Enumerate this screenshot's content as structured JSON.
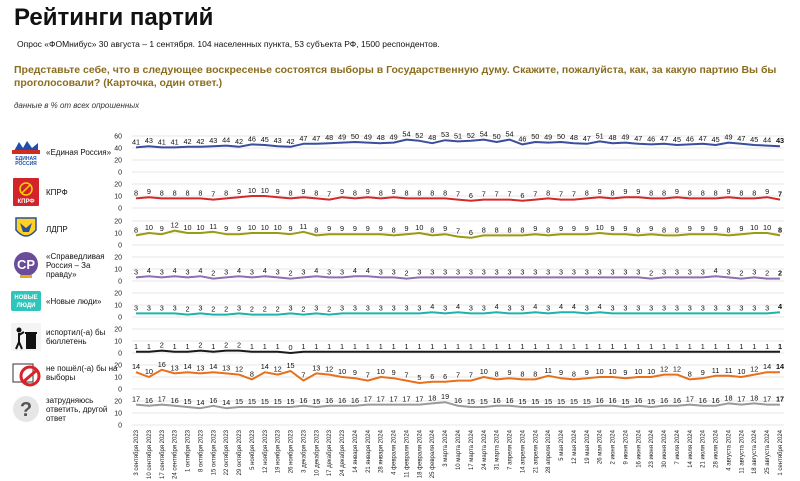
{
  "header": {
    "title": "Рейтинги партий",
    "survey": "Опрос «ФОМнибус» 30 августа – 1 сентября. 104 населенных пункта, 53 субъекта РФ, 1500 респондентов.",
    "question": "Представьте себе, что в следующее воскресенье состоятся выборы в Государственную думу. Скажите, пожалуйста, как, за какую партию Вы бы проголосовали? (Карточка, один ответ.)",
    "note": "данные в % от всех опрошенных"
  },
  "parties": [
    {
      "label": "«Единая Россия»",
      "logo_icon": "united-russia-bear-icon",
      "logo_text": "ЕДИНАЯ РОССИЯ"
    },
    {
      "label": "КПРФ",
      "logo_icon": "kprf-hammer-sickle-icon",
      "logo_text": "КПРФ"
    },
    {
      "label": "ЛДПР",
      "logo_icon": "ldpr-eagle-icon",
      "logo_text": ""
    },
    {
      "label": "«Справедливая Россия – За правду»",
      "logo_icon": "sr-logo-icon",
      "logo_text": "СР"
    },
    {
      "label": "«Новые люди»",
      "logo_icon": "new-people-logo-icon",
      "logo_text": "НОВЫЕ ЛЮДИ"
    },
    {
      "label": "испортил(-а) бы бюллетень",
      "logo_icon": "trash-bin-icon",
      "logo_text": ""
    },
    {
      "label": "не пошёл(-а) бы на выборы",
      "logo_icon": "no-vote-icon",
      "logo_text": ""
    },
    {
      "label": "затрудняюсь ответить, другой ответ",
      "logo_icon": "question-mark-icon",
      "logo_text": "?"
    }
  ],
  "chart_data": {
    "type": "line",
    "title": "Рейтинги партий",
    "ylim_top": [
      0,
      60
    ],
    "yticks_top": [
      0,
      20,
      40,
      60
    ],
    "ylim": [
      0,
      20
    ],
    "yticks": [
      0,
      10,
      20
    ],
    "x": [
      "3 сентября 2023",
      "10 сентября 2023",
      "17 сентября 2023",
      "24 сентября 2023",
      "1 октября 2023",
      "8 октября 2023",
      "15 октября 2023",
      "22 октября 2023",
      "29 октября 2023",
      "5 ноября 2023",
      "12 ноября 2023",
      "19 ноября 2023",
      "26 ноября 2023",
      "3 декабря 2023",
      "10 декабря 2023",
      "17 декабря 2023",
      "24 декабря 2023",
      "14 января 2024",
      "21 января 2024",
      "28 января 2024",
      "4 февраля 2024",
      "11 февраля 2024",
      "18 февраля 2024",
      "25 февраля 2024",
      "3 марта 2024",
      "10 марта 2024",
      "17 марта 2024",
      "24 марта 2024",
      "31 марта 2024",
      "7 апреля 2024",
      "14 апреля 2024",
      "21 апреля 2024",
      "28 апреля 2024",
      "5 мая 2024",
      "12 мая 2024",
      "19 мая 2024",
      "26 мая 2024",
      "2 июня 2024",
      "9 июня 2024",
      "16 июня 2024",
      "23 июня 2024",
      "30 июня 2024",
      "7 июля 2024",
      "14 июля 2024",
      "21 июля 2024",
      "28 июля 2024",
      "4 августа 2024",
      "11 августа 2024",
      "18 августа 2024",
      "25 августа 2024",
      "1 сентября 2024"
    ],
    "series": [
      {
        "name": "«Единая Россия»",
        "color": "#3a4ea0",
        "values": [
          41,
          43,
          41,
          41,
          42,
          42,
          43,
          44,
          42,
          46,
          45,
          43,
          42,
          47,
          47,
          48,
          49,
          50,
          49,
          48,
          49,
          54,
          52,
          48,
          53,
          51,
          52,
          54,
          50,
          54,
          46,
          50,
          49,
          50,
          48,
          47,
          51,
          48,
          49,
          47,
          46,
          47,
          45,
          46,
          47,
          45,
          49,
          47,
          45,
          44,
          43
        ]
      },
      {
        "name": "КПРФ",
        "color": "#d62828",
        "values": [
          8,
          9,
          8,
          8,
          8,
          8,
          7,
          8,
          9,
          10,
          10,
          9,
          8,
          9,
          8,
          7,
          9,
          8,
          9,
          8,
          9,
          8,
          8,
          8,
          8,
          7,
          6,
          7,
          7,
          7,
          6,
          7,
          8,
          7,
          7,
          8,
          9,
          8,
          9,
          9,
          8,
          8,
          9,
          8,
          8,
          8,
          9,
          8,
          8,
          9,
          7
        ]
      },
      {
        "name": "ЛДПР",
        "color": "#9a9a14",
        "values": [
          8,
          10,
          9,
          12,
          10,
          10,
          11,
          9,
          9,
          10,
          10,
          10,
          9,
          11,
          8,
          9,
          9,
          9,
          9,
          9,
          8,
          9,
          10,
          8,
          9,
          7,
          6,
          8,
          8,
          8,
          8,
          9,
          8,
          9,
          9,
          9,
          10,
          9,
          9,
          8,
          9,
          8,
          8,
          9,
          9,
          9,
          8,
          9,
          10,
          10,
          8
        ]
      },
      {
        "name": "«Справедливая Россия – За правду»",
        "color": "#8f6fb0",
        "values": [
          3,
          4,
          3,
          4,
          3,
          4,
          2,
          3,
          4,
          3,
          4,
          3,
          2,
          3,
          4,
          3,
          3,
          4,
          4,
          3,
          3,
          2,
          3,
          3,
          3,
          3,
          3,
          3,
          3,
          3,
          3,
          3,
          3,
          3,
          3,
          3,
          3,
          3,
          3,
          3,
          2,
          3,
          3,
          3,
          3,
          4,
          3,
          2,
          3,
          2,
          2
        ]
      },
      {
        "name": "«Новые люди»",
        "color": "#1fb2aa",
        "values": [
          3,
          3,
          3,
          3,
          2,
          3,
          2,
          2,
          3,
          2,
          2,
          2,
          3,
          2,
          3,
          2,
          3,
          3,
          3,
          3,
          3,
          3,
          3,
          4,
          3,
          4,
          3,
          3,
          4,
          3,
          3,
          4,
          3,
          4,
          4,
          3,
          4,
          3,
          3,
          3,
          3,
          3,
          3,
          3,
          3,
          3,
          3,
          3,
          3,
          3,
          4
        ]
      },
      {
        "name": "испортил(-а) бы бюллетень",
        "color": "#1a1a1a",
        "values": [
          1,
          1,
          2,
          1,
          1,
          2,
          1,
          2,
          2,
          1,
          1,
          1,
          0,
          1,
          1,
          1,
          1,
          1,
          1,
          1,
          1,
          1,
          1,
          1,
          1,
          1,
          1,
          1,
          1,
          1,
          1,
          1,
          1,
          1,
          1,
          1,
          1,
          1,
          1,
          1,
          1,
          1,
          1,
          1,
          1,
          1,
          1,
          1,
          1,
          1,
          1
        ]
      },
      {
        "name": "не пошёл(-а) бы на выборы",
        "color": "#e8701a",
        "values": [
          14,
          10,
          16,
          13,
          14,
          13,
          14,
          13,
          12,
          8,
          14,
          12,
          15,
          7,
          13,
          12,
          10,
          9,
          7,
          10,
          9,
          7,
          5,
          6,
          6,
          7,
          7,
          10,
          8,
          9,
          8,
          8,
          11,
          9,
          8,
          9,
          10,
          10,
          9,
          10,
          10,
          12,
          12,
          8,
          9,
          11,
          11,
          10,
          12,
          14,
          14
        ]
      },
      {
        "name": "затрудняюсь ответить, другой ответ",
        "color": "#9a9a9a",
        "values": [
          17,
          16,
          17,
          16,
          15,
          14,
          16,
          14,
          15,
          15,
          15,
          15,
          15,
          16,
          15,
          16,
          16,
          16,
          17,
          17,
          17,
          17,
          17,
          18,
          19,
          16,
          15,
          15,
          16,
          16,
          15,
          15,
          15,
          15,
          15,
          15,
          16,
          16,
          15,
          16,
          15,
          16,
          16,
          17,
          16,
          16,
          18,
          17,
          18,
          17,
          17
        ]
      }
    ]
  }
}
